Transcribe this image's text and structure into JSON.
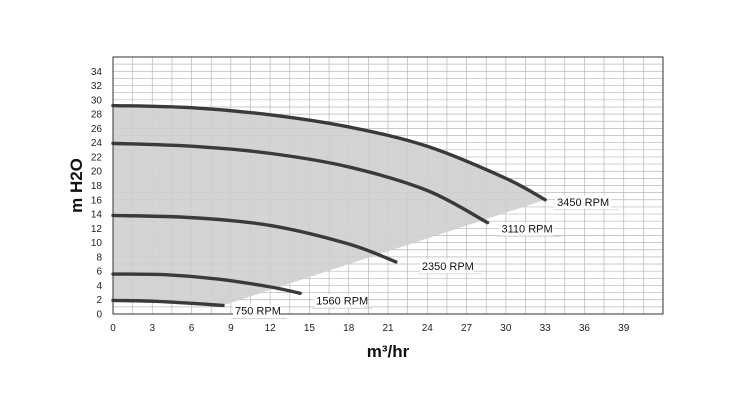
{
  "chart_data": {
    "type": "line",
    "xlabel": "m³/hr",
    "ylabel": "m H2O",
    "xlim": [
      0,
      42
    ],
    "ylim": [
      0,
      36
    ],
    "x_ticks": [
      0,
      3,
      6,
      9,
      12,
      15,
      18,
      21,
      24,
      27,
      30,
      33,
      36,
      39
    ],
    "y_ticks": [
      0,
      2,
      4,
      6,
      8,
      10,
      12,
      14,
      16,
      18,
      20,
      22,
      24,
      26,
      28,
      30,
      32,
      34
    ],
    "grid": true,
    "legend": "none",
    "shaded_region": "operating area between 750 RPM and 3450 RPM curves",
    "colors": {
      "curve": "#3a3a3a",
      "fill": "#cfcfcf",
      "grid": "#b8b8b8",
      "frame": "#333333"
    },
    "series": [
      {
        "name": "3450 RPM",
        "x": [
          0,
          6,
          12,
          18,
          24,
          30,
          33
        ],
        "y": [
          29.2,
          28.9,
          27.9,
          26.2,
          23.5,
          19.0,
          16.0
        ]
      },
      {
        "name": "3110 RPM",
        "x": [
          0,
          6,
          12,
          18,
          24,
          28.6
        ],
        "y": [
          23.9,
          23.5,
          22.5,
          20.6,
          17.3,
          12.8
        ]
      },
      {
        "name": "2350 RPM",
        "x": [
          0,
          6,
          12,
          18,
          21.6
        ],
        "y": [
          13.8,
          13.5,
          12.4,
          9.8,
          7.3
        ]
      },
      {
        "name": "1560 RPM",
        "x": [
          0,
          4,
          8,
          12,
          14.3
        ],
        "y": [
          5.6,
          5.5,
          4.9,
          3.8,
          2.9
        ]
      },
      {
        "name": "750 RPM",
        "x": [
          0,
          3,
          6,
          8.4
        ],
        "y": [
          1.9,
          1.8,
          1.5,
          1.2
        ]
      }
    ]
  }
}
